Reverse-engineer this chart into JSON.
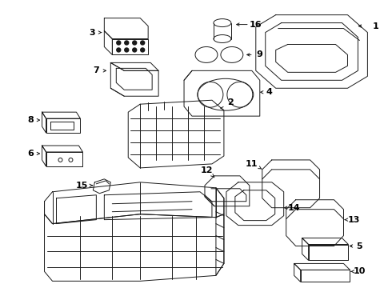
{
  "bg_color": "#ffffff",
  "line_color": "#1a1a1a",
  "text_color": "#000000",
  "fig_width": 4.9,
  "fig_height": 3.6,
  "dpi": 100
}
